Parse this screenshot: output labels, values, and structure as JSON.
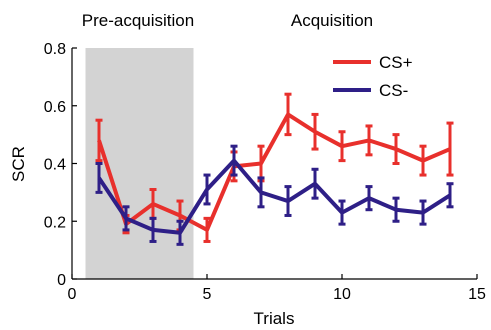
{
  "chart_data": {
    "type": "line",
    "xlabel": "Trials",
    "ylabel": "SCR",
    "xlim": [
      0,
      15
    ],
    "ylim": [
      0,
      0.8
    ],
    "x_ticks": [
      0,
      5,
      10,
      15
    ],
    "y_ticks": [
      0,
      0.2,
      0.4,
      0.6,
      0.8
    ],
    "x_tick_labels": [
      "0",
      "5",
      "10",
      "15"
    ],
    "y_tick_labels": [
      "0",
      "0.2",
      "0.4",
      "0.6",
      "0.8"
    ],
    "grid": false,
    "legend_position": "top-right",
    "phase_labels": [
      "Pre-acquisition",
      "Acquisition"
    ],
    "shaded_region": {
      "x_range": [
        0.5,
        4.5
      ],
      "color": "#d3d3d3"
    },
    "series": [
      {
        "name": "CS+",
        "color": "#e8302c",
        "x": [
          1,
          2,
          3,
          4,
          5,
          6,
          7,
          8,
          9,
          10,
          11,
          12,
          13,
          14
        ],
        "values": [
          0.48,
          0.19,
          0.26,
          0.22,
          0.17,
          0.39,
          0.4,
          0.57,
          0.51,
          0.46,
          0.48,
          0.45,
          0.41,
          0.45
        ],
        "error": [
          0.07,
          0.03,
          0.05,
          0.05,
          0.04,
          0.05,
          0.06,
          0.07,
          0.06,
          0.05,
          0.05,
          0.05,
          0.05,
          0.09
        ]
      },
      {
        "name": "CS-",
        "color": "#2e1f87",
        "x": [
          1,
          2,
          3,
          4,
          5,
          6,
          7,
          8,
          9,
          10,
          11,
          12,
          13,
          14
        ],
        "values": [
          0.35,
          0.21,
          0.17,
          0.16,
          0.31,
          0.41,
          0.3,
          0.27,
          0.33,
          0.23,
          0.28,
          0.24,
          0.23,
          0.29
        ],
        "error": [
          0.05,
          0.04,
          0.04,
          0.04,
          0.05,
          0.05,
          0.05,
          0.05,
          0.05,
          0.04,
          0.04,
          0.04,
          0.04,
          0.04
        ]
      }
    ]
  }
}
